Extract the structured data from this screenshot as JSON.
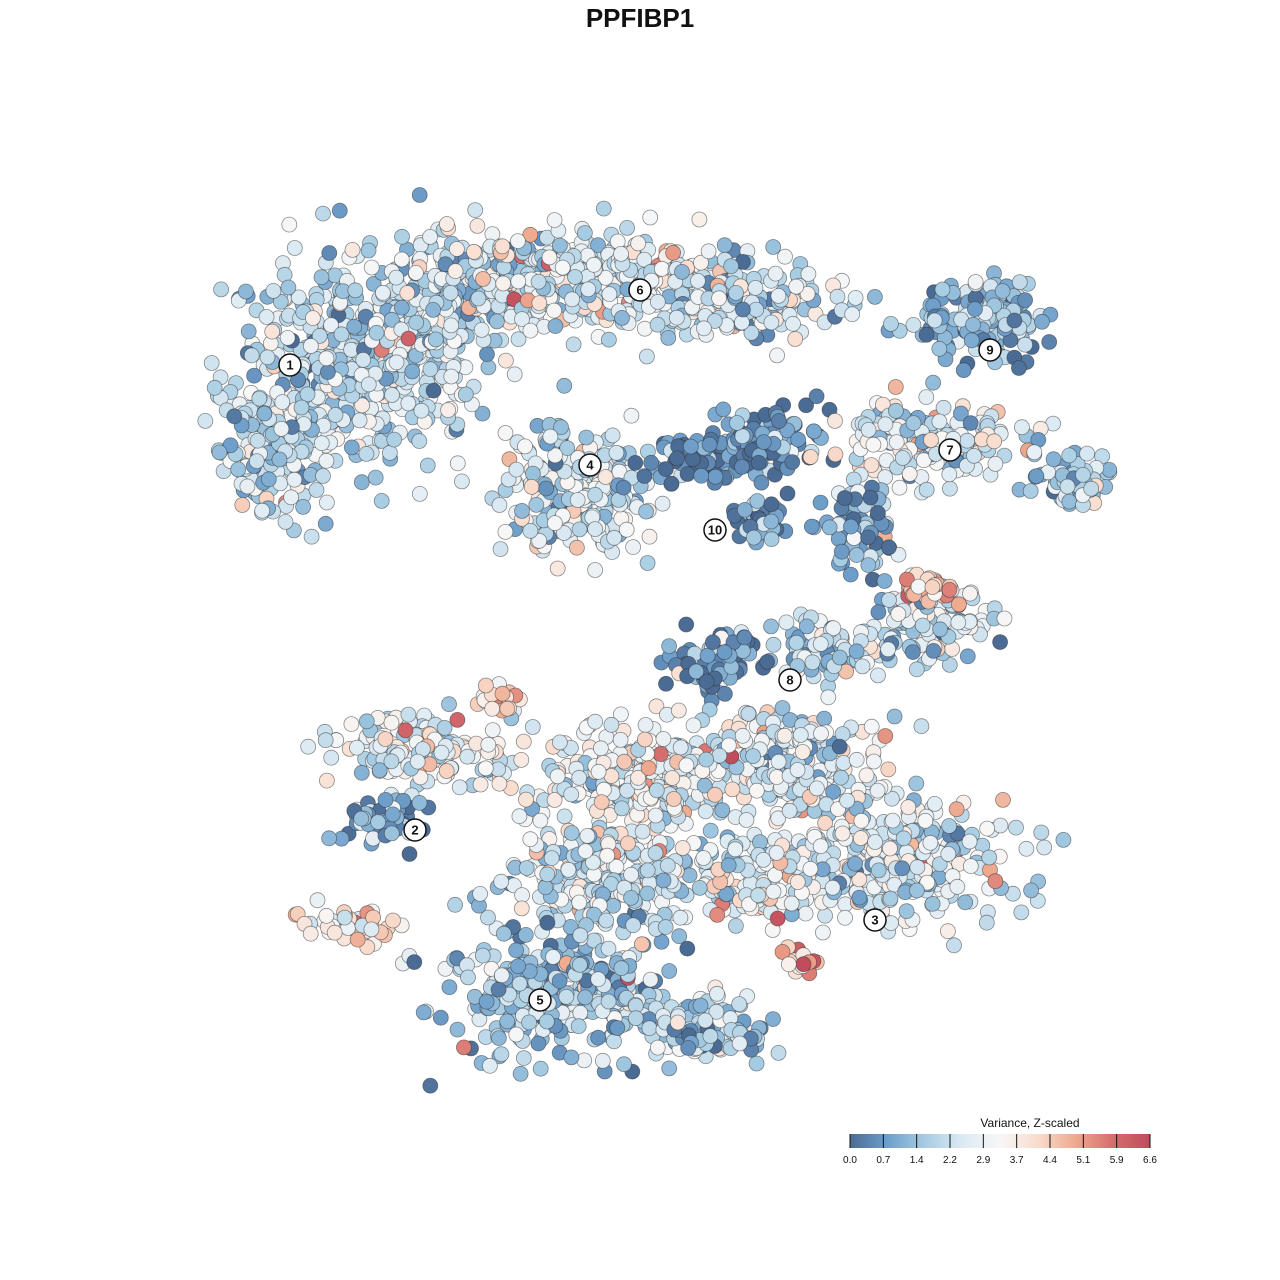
{
  "chart_data": {
    "type": "scatter",
    "title": "PPFIBP1",
    "xlabel": "",
    "ylabel": "",
    "grid": false,
    "legend_placement": "bottom-right",
    "color_scale": {
      "title": "Variance, Z-scaled",
      "min": 0.0,
      "max": 6.6,
      "ticks": [
        "0.0",
        "0.7",
        "1.4",
        "2.2",
        "2.9",
        "3.7",
        "4.4",
        "5.1",
        "5.9",
        "6.6"
      ],
      "colors": [
        "#4a6b94",
        "#6f9fcb",
        "#a6cce2",
        "#dceaf3",
        "#f7f7f7",
        "#f9dccd",
        "#eeaa8f",
        "#d66e6e",
        "#c04c5c"
      ]
    },
    "clusters": [
      {
        "label": "1",
        "x": -0.7,
        "y": 0.55,
        "mean": 2.1
      },
      {
        "label": "2",
        "x": -0.45,
        "y": -0.38,
        "mean": 2.6
      },
      {
        "label": "3",
        "x": 0.47,
        "y": -0.56,
        "mean": 2.7
      },
      {
        "label": "4",
        "x": -0.1,
        "y": 0.35,
        "mean": 2.2
      },
      {
        "label": "5",
        "x": -0.2,
        "y": -0.72,
        "mean": 1.9
      },
      {
        "label": "6",
        "x": 0.0,
        "y": 0.7,
        "mean": 2.4
      },
      {
        "label": "7",
        "x": 0.62,
        "y": 0.38,
        "mean": 2.4
      },
      {
        "label": "8",
        "x": 0.3,
        "y": -0.08,
        "mean": 2.0
      },
      {
        "label": "9",
        "x": 0.7,
        "y": 0.58,
        "mean": 1.4
      },
      {
        "label": "10",
        "x": 0.15,
        "y": 0.22,
        "mean": 0.6
      }
    ]
  }
}
